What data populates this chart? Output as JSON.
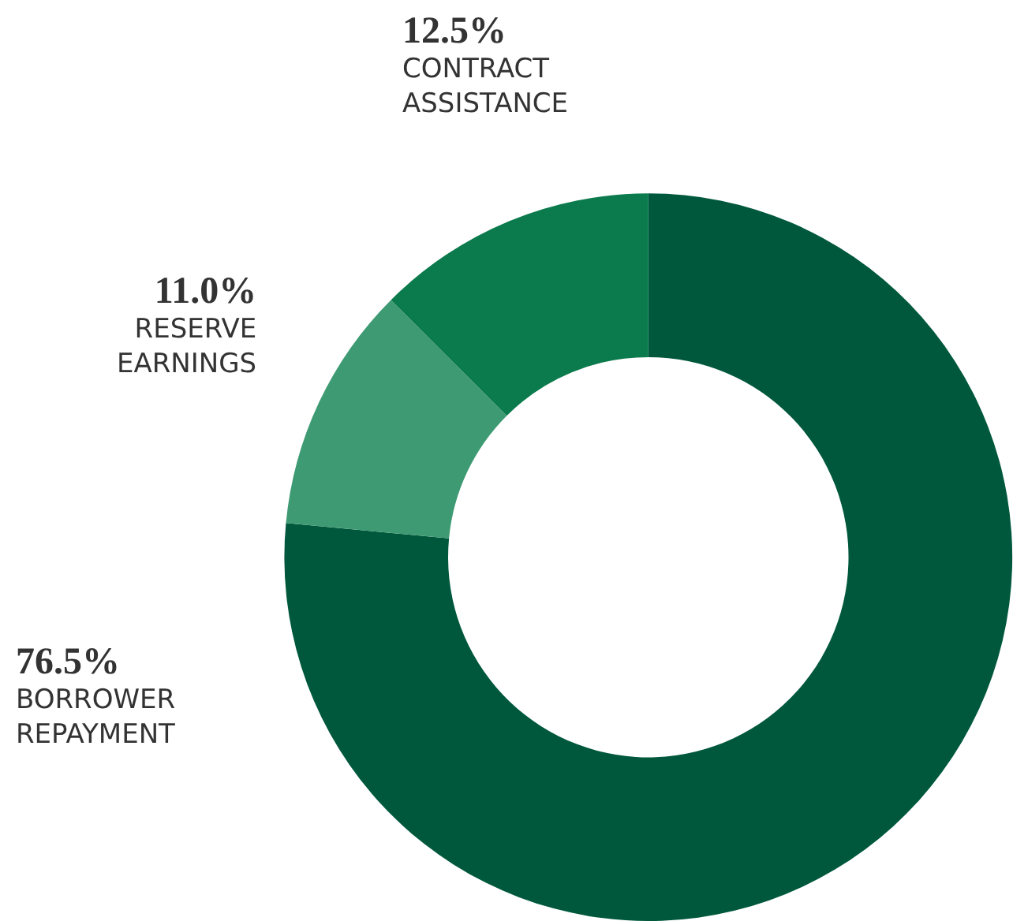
{
  "chart_data": {
    "type": "donut",
    "categories": [
      "BORROWER REPAYMENT",
      "RESERVE EARNINGS",
      "CONTRACT ASSISTANCE"
    ],
    "values": [
      76.5,
      11.0,
      12.5
    ],
    "colors": [
      "#00583c",
      "#3e9a72",
      "#0b7a4c"
    ],
    "value_labels": [
      "76.5%",
      "11.0%",
      "12.5%"
    ],
    "legend": false
  }
}
